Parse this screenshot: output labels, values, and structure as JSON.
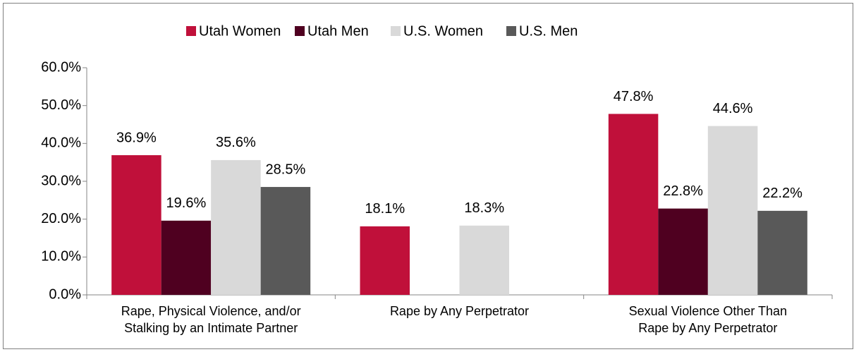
{
  "chart_data": {
    "type": "bar",
    "categories": [
      [
        "Rape, Physical Violence, and/or",
        "Stalking by an Intimate Partner"
      ],
      [
        "Rape by Any Perpetrator"
      ],
      [
        "Sexual Violence Other Than",
        "Rape by Any Perpetrator"
      ]
    ],
    "series": [
      {
        "name": "Utah Women",
        "color": "#c0103a",
        "values": [
          36.9,
          18.1,
          47.8
        ],
        "value_labels": [
          "36.9%",
          "18.1%",
          "47.8%"
        ]
      },
      {
        "name": "Utah Men",
        "color": "#4f0020",
        "values": [
          19.6,
          null,
          22.8
        ],
        "value_labels": [
          "19.6%",
          null,
          "22.8%"
        ]
      },
      {
        "name": "U.S. Women",
        "color": "#d9d9d9",
        "values": [
          35.6,
          18.3,
          44.6
        ],
        "value_labels": [
          "35.6%",
          "18.3%",
          "44.6%"
        ]
      },
      {
        "name": "U.S. Men",
        "color": "#595959",
        "values": [
          28.5,
          null,
          22.2
        ],
        "value_labels": [
          "28.5%",
          null,
          "22.2%"
        ]
      }
    ],
    "ylim": [
      0,
      60
    ],
    "yticks": [
      {
        "value": 0,
        "label": "0.0%"
      },
      {
        "value": 10,
        "label": "10.0%"
      },
      {
        "value": 20,
        "label": "20.0%"
      },
      {
        "value": 30,
        "label": "30.0%"
      },
      {
        "value": 40,
        "label": "40.0%"
      },
      {
        "value": 50,
        "label": "50.0%"
      },
      {
        "value": 60,
        "label": "60.0%"
      }
    ],
    "legend": "top"
  }
}
